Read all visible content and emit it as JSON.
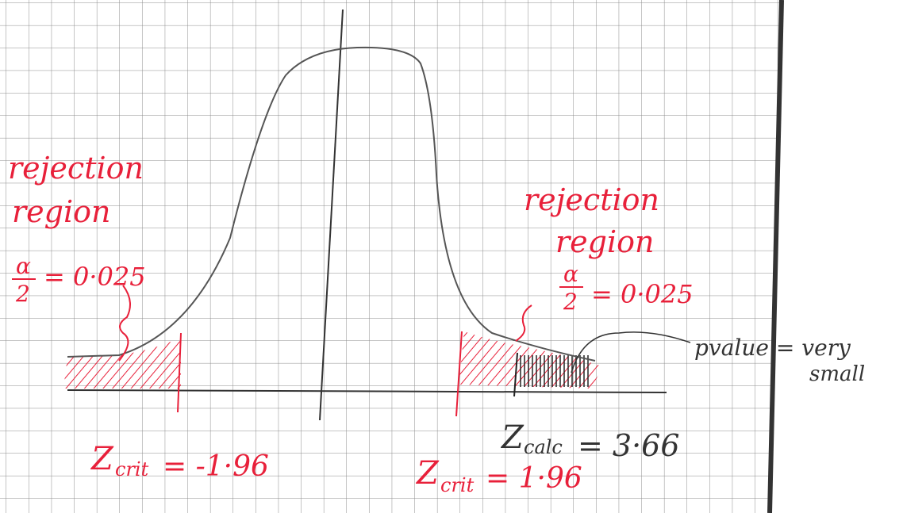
{
  "left_region": {
    "label_line1": "rejection",
    "label_line2": "region",
    "fraction_top": "α",
    "fraction_bottom": "2",
    "fraction_value": "= 0·025"
  },
  "right_region": {
    "label_line1": "rejection",
    "label_line2": "region",
    "fraction_top": "α",
    "fraction_bottom": "2",
    "fraction_value": "= 0·025"
  },
  "pvalue_note": {
    "line1": "pvalue = very",
    "line2": "small"
  },
  "z_crit_left": {
    "symbol": "Z",
    "subscript": "crit",
    "value": "= -1·96"
  },
  "z_crit_right": {
    "symbol": "Z",
    "subscript": "crit",
    "value": "= 1·96"
  },
  "z_calc": {
    "symbol": "Z",
    "subscript": "calc",
    "value": "= 3·66"
  }
}
